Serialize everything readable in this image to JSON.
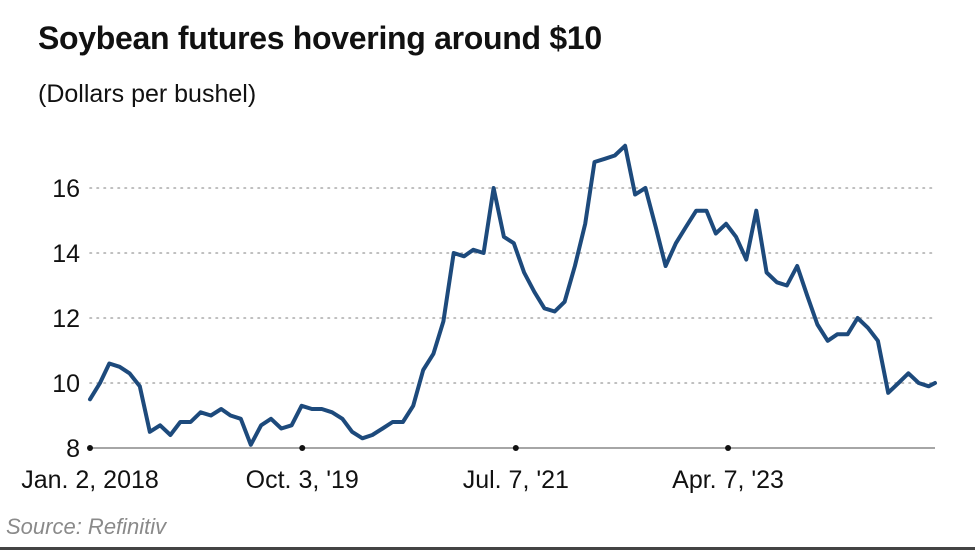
{
  "chart_data": {
    "type": "line",
    "title": "Soybean futures hovering around $10",
    "subtitle": "(Dollars per bushel)",
    "source": "Source: Refinitiv",
    "ylim": [
      8,
      17.7
    ],
    "yticks": [
      8,
      10,
      12,
      14,
      16
    ],
    "ytick_labels": [
      "8",
      "10",
      "12",
      "14",
      "16"
    ],
    "xlim": [
      "2018-01-02",
      "2024-12-20"
    ],
    "xticks": [
      "2018-01-02",
      "2019-10-03",
      "2021-07-07",
      "2023-04-07"
    ],
    "xtick_labels": [
      "Jan. 2, 2018",
      "Oct. 3, '19",
      "Jul. 7, '21",
      "Apr. 7, '23"
    ],
    "grid": "horizontal dotted",
    "line_color": "#1d4a7c",
    "series": [
      {
        "dates": [
          "2018-01",
          "2018-02",
          "2018-03",
          "2018-04",
          "2018-05",
          "2018-06",
          "2018-07",
          "2018-08",
          "2018-09",
          "2018-10",
          "2018-11",
          "2018-12",
          "2019-01",
          "2019-02",
          "2019-03",
          "2019-04",
          "2019-05",
          "2019-06",
          "2019-07",
          "2019-08",
          "2019-09",
          "2019-10",
          "2019-11",
          "2019-12",
          "2020-01",
          "2020-02",
          "2020-03",
          "2020-04",
          "2020-05",
          "2020-06",
          "2020-07",
          "2020-08",
          "2020-09",
          "2020-10",
          "2020-11",
          "2020-12",
          "2021-01",
          "2021-02",
          "2021-03",
          "2021-04",
          "2021-05",
          "2021-06",
          "2021-07",
          "2021-08",
          "2021-09",
          "2021-10",
          "2021-11",
          "2021-12",
          "2022-01",
          "2022-02",
          "2022-03",
          "2022-04",
          "2022-05",
          "2022-06",
          "2022-07",
          "2022-08",
          "2022-09",
          "2022-10",
          "2022-11",
          "2022-12",
          "2023-01",
          "2023-02",
          "2023-03",
          "2023-04",
          "2023-05",
          "2023-06",
          "2023-07",
          "2023-08",
          "2023-09",
          "2023-10",
          "2023-11",
          "2023-12",
          "2024-01",
          "2024-02",
          "2024-03",
          "2024-04",
          "2024-05",
          "2024-06",
          "2024-07",
          "2024-08",
          "2024-09",
          "2024-10",
          "2024-11",
          "2024-12"
        ],
        "values": [
          9.5,
          10.0,
          10.6,
          10.5,
          10.3,
          9.9,
          8.5,
          8.7,
          8.4,
          8.8,
          8.8,
          9.1,
          9.0,
          9.2,
          9.0,
          8.9,
          8.1,
          8.7,
          8.9,
          8.6,
          8.7,
          9.3,
          9.2,
          9.2,
          9.1,
          8.9,
          8.5,
          8.3,
          8.4,
          8.6,
          8.8,
          8.8,
          9.3,
          10.4,
          10.9,
          11.9,
          14.0,
          13.9,
          14.1,
          14.0,
          16.0,
          14.5,
          14.3,
          13.4,
          12.8,
          12.3,
          12.2,
          12.5,
          13.6,
          14.9,
          16.8,
          16.9,
          17.0,
          17.3,
          15.8,
          16.0,
          14.8,
          13.6,
          14.3,
          14.8,
          15.3,
          15.3,
          14.6,
          14.9,
          14.5,
          13.8,
          15.3,
          13.4,
          13.1,
          13.0,
          13.6,
          12.7,
          11.8,
          11.3,
          11.5,
          11.5,
          12.0,
          11.7,
          11.3,
          9.7,
          10.0,
          10.3,
          10.0,
          9.9
        ]
      }
    ]
  }
}
